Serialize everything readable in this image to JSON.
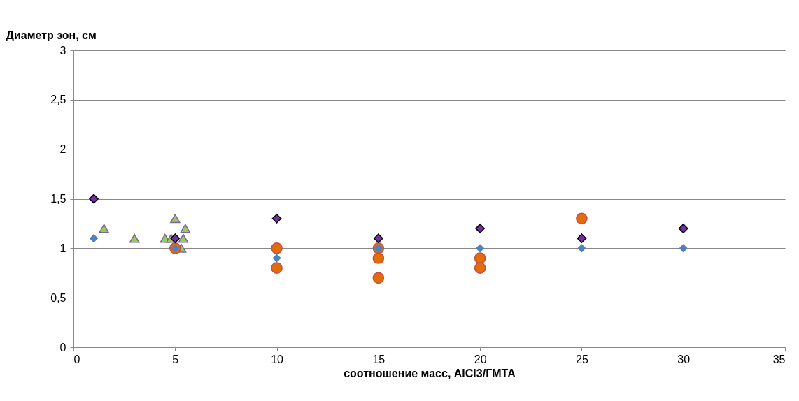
{
  "chart_data": {
    "type": "scatter",
    "xlabel": "соотношение масс, AlCl3/ГМТА",
    "ylabel": "Диаметр зон, см",
    "xlim": [
      0,
      35
    ],
    "xticks": [
      0,
      5,
      10,
      15,
      20,
      25,
      30,
      35
    ],
    "ylim": [
      0,
      3
    ],
    "yticks": [
      0,
      {
        "value": 0.5,
        "label": "0,5"
      },
      1,
      {
        "value": 1.5,
        "label": "1,5"
      },
      2,
      {
        "value": 2.5,
        "label": "2,5"
      },
      3
    ],
    "grid": "y",
    "series": [
      {
        "color": "#92d050",
        "marker": "triangle",
        "x": [
          1.5,
          3,
          4.5,
          4.8,
          5,
          5.5,
          5.4,
          5.3
        ],
        "values": [
          1.2,
          1.1,
          1.1,
          1.1,
          1.3,
          1.2,
          1.1,
          1.0
        ]
      },
      {
        "color": "#e36c09",
        "marker": "circle",
        "x": [
          5,
          10,
          10,
          15,
          15,
          15,
          20,
          20,
          25
        ],
        "values": [
          1.0,
          1.0,
          0.8,
          1.0,
          0.9,
          0.7,
          0.9,
          0.8,
          1.3
        ]
      },
      {
        "color": "#4f81bd",
        "marker": "diamond",
        "x": [
          1,
          5,
          10,
          15,
          20,
          25,
          30
        ],
        "values": [
          1.1,
          1.0,
          0.9,
          1.0,
          1.0,
          1.0,
          1.0
        ]
      },
      {
        "color": "#7030a0",
        "marker": "diamond",
        "x": [
          1,
          5,
          10,
          15,
          20,
          25,
          30
        ],
        "values": [
          1.5,
          1.1,
          1.3,
          1.1,
          1.2,
          1.1,
          1.2
        ]
      }
    ]
  }
}
